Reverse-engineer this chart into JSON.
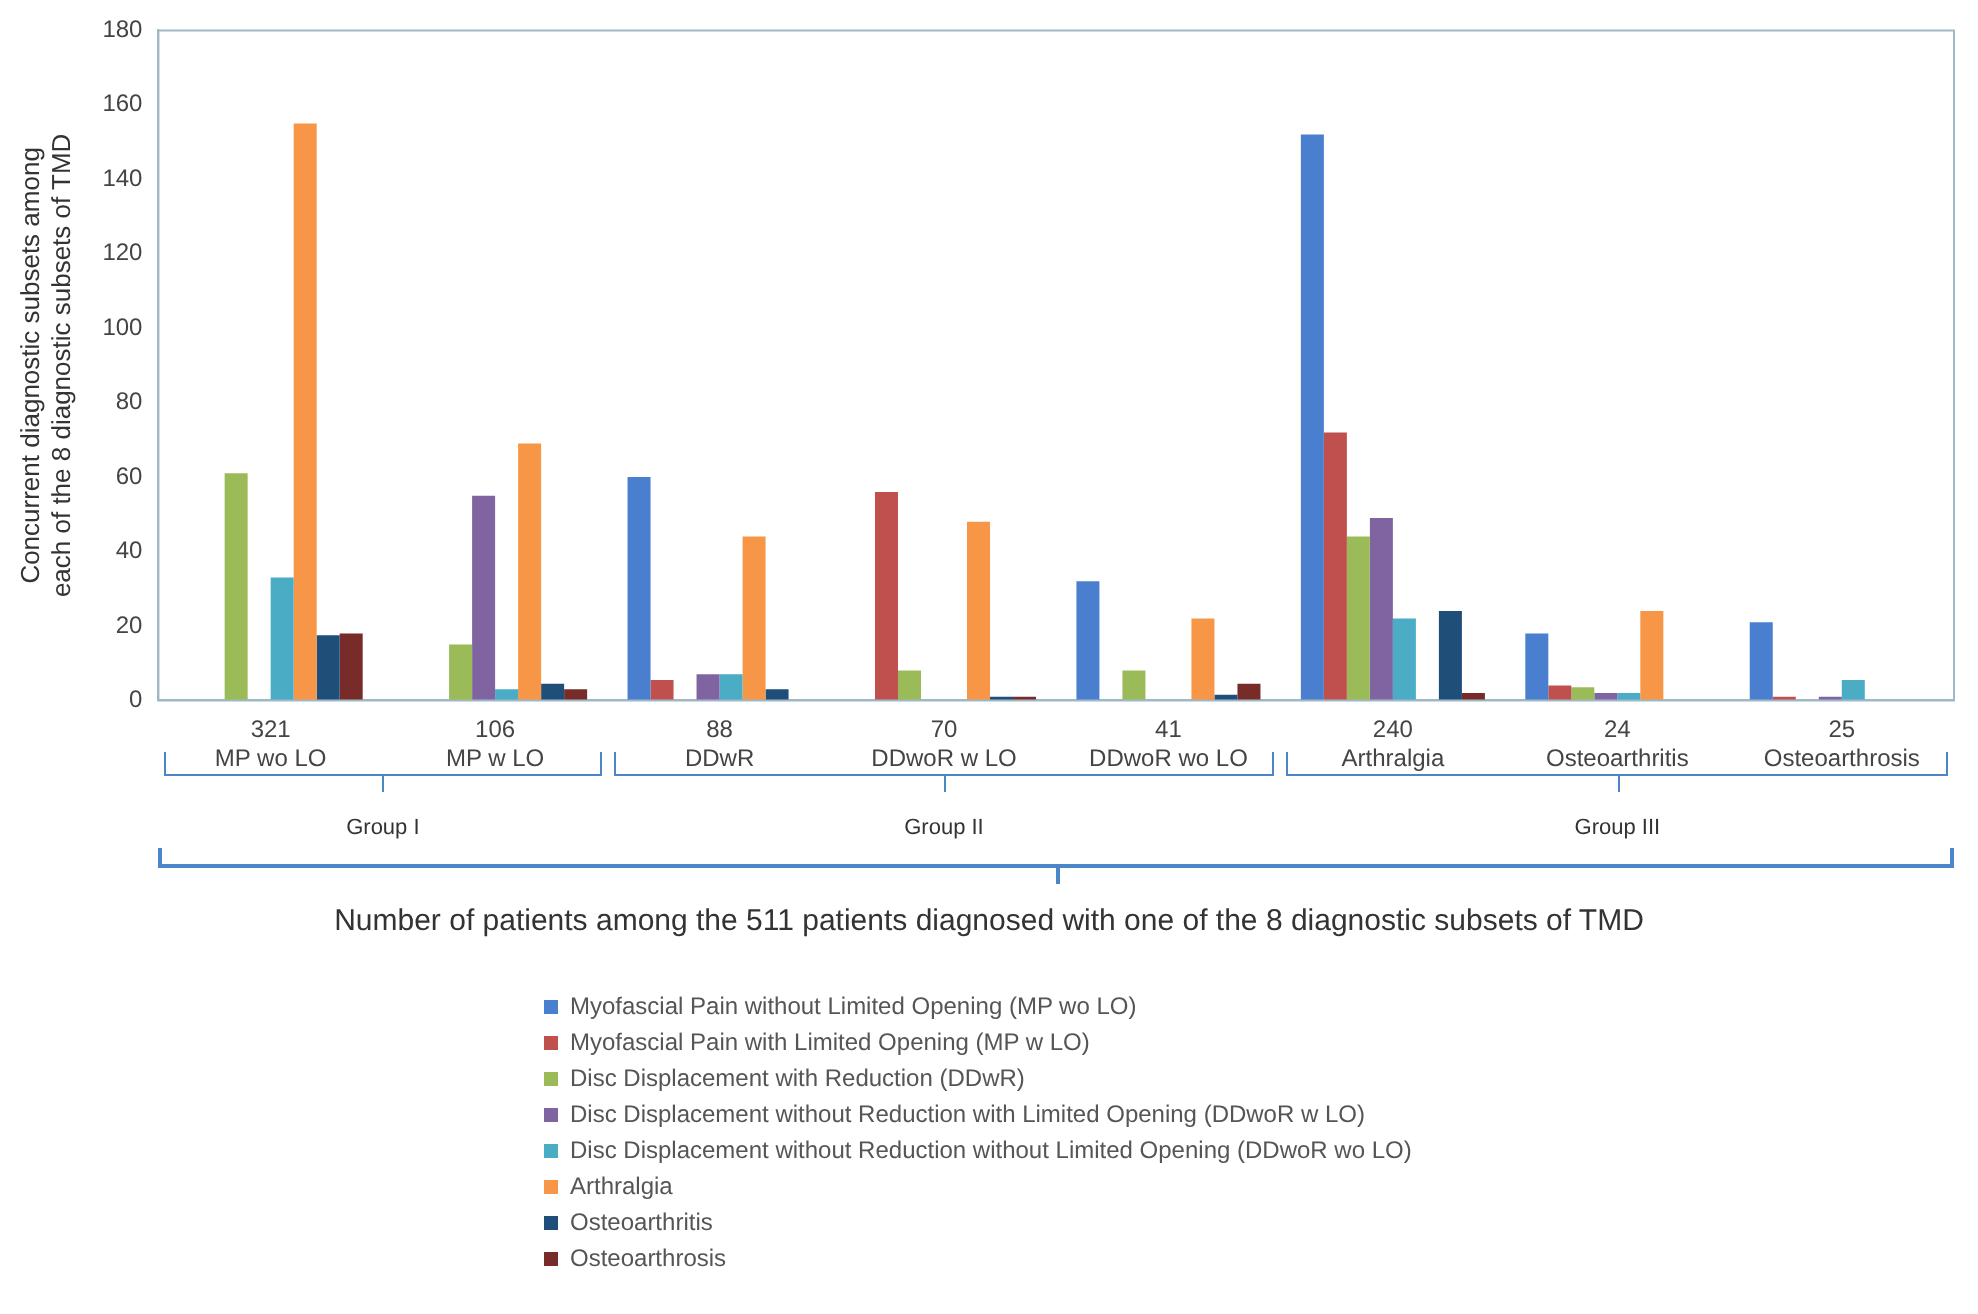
{
  "chart_data": {
    "type": "bar",
    "xlabel": "Number of patients among the 511 patients diagnosed with one of the 8 diagnostic subsets of TMD",
    "ylabel": "Concurrent diagnostic subsets among each of the 8 diagnostic subsets of TMD",
    "categories": [
      "321\nMP wo LO",
      "106\nMP w LO",
      "88\nDDwR",
      "70\nDDwoR w LO",
      "41\nDDwoR wo LO",
      "240\nArthralgia",
      "24\nOsteoarthritis",
      "25\nOsteoarthrosis"
    ],
    "series": [
      {
        "name": "Myofascial Pain without Limited Opening (MP wo LO)",
        "color": "#4a7fcf",
        "values": [
          0,
          0,
          60,
          0,
          32,
          152,
          18,
          21
        ]
      },
      {
        "name": "Myofascial Pain with Limited Opening (MP w LO)",
        "color": "#c0504d",
        "values": [
          0,
          0,
          5.5,
          56,
          0,
          72,
          4,
          1
        ]
      },
      {
        "name": "Disc Displacement with Reduction (DDwR)",
        "color": "#9bbb59",
        "values": [
          61,
          15,
          0,
          8,
          8,
          44,
          3.5,
          0
        ]
      },
      {
        "name": "Disc Displacement without Reduction with Limited Opening (DDwoR w LO)",
        "color": "#8064a2",
        "values": [
          0,
          55,
          7,
          0,
          0,
          49,
          2,
          1
        ]
      },
      {
        "name": "Disc Displacement without Reduction without Limited Opening (DDwoR wo LO)",
        "color": "#4bacc6",
        "values": [
          33,
          3,
          7,
          0,
          0,
          22,
          2,
          5.5
        ]
      },
      {
        "name": "Arthralgia",
        "color": "#f79646",
        "values": [
          155,
          69,
          44,
          48,
          22,
          0,
          24,
          0
        ]
      },
      {
        "name": "Osteoarthritis",
        "color": "#1f4e79",
        "values": [
          17.5,
          4.5,
          3,
          1,
          1.5,
          24,
          0,
          0
        ]
      },
      {
        "name": "Osteoarthrosis",
        "color": "#772c2a",
        "values": [
          18,
          3,
          0,
          1,
          4.5,
          2,
          0,
          0
        ]
      }
    ],
    "ylim": [
      0,
      180
    ],
    "yticks": [
      0,
      20,
      40,
      60,
      80,
      100,
      120,
      140,
      160,
      180
    ],
    "grid": false,
    "legend": "bottom",
    "annotations": [
      "Group I",
      "Group II",
      "Group III"
    ]
  }
}
